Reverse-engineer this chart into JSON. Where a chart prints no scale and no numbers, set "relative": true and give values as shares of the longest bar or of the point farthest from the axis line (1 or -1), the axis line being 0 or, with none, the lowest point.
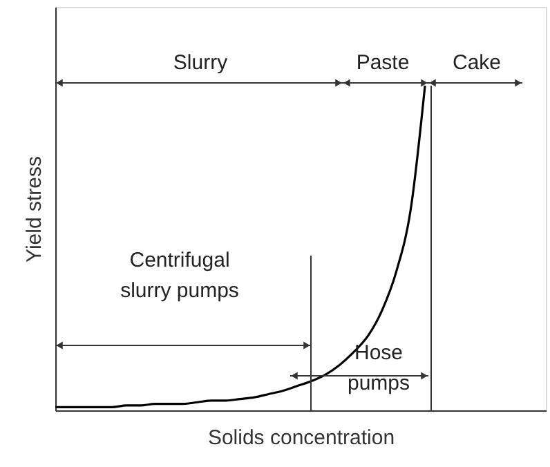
{
  "chart_data": {
    "type": "line",
    "relative": true,
    "xlabel": "Solids concentration",
    "ylabel": "Yield stress",
    "categories": [
      null,
      null,
      null,
      null,
      null,
      null,
      null,
      null,
      null,
      null,
      null,
      null,
      null,
      null,
      null,
      null,
      null,
      null,
      null,
      null,
      null,
      null,
      null,
      null,
      null,
      null,
      null,
      null,
      null,
      null,
      null,
      null,
      null,
      null,
      null,
      null
    ],
    "series": [
      {
        "color": "#000000",
        "values": [
          0.01,
          0.01,
          0.01,
          0.01,
          0.01,
          0.015,
          0.015,
          0.02,
          0.02,
          0.02,
          0.025,
          0.03,
          0.03,
          0.035,
          0.04,
          0.05,
          0.06,
          0.075,
          0.09,
          0.11,
          0.14,
          0.18,
          0.23,
          0.31,
          0.43,
          0.62,
          1.0,
          null,
          null,
          null,
          null,
          null,
          null,
          null,
          null,
          null
        ]
      }
    ],
    "annotations": [
      "Slurry",
      "Paste",
      "Cake",
      "Centrifugal\nslurry pumps",
      "Hose\npumps"
    ],
    "grid": false,
    "marker": "none",
    "line_style": "solid"
  }
}
